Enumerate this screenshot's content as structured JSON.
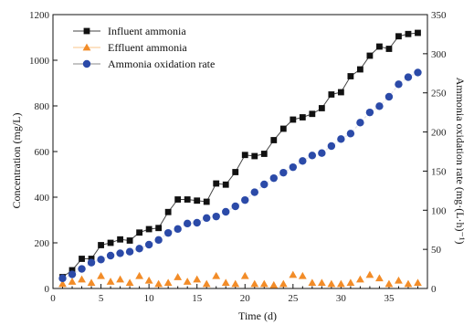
{
  "chart_data": {
    "type": "line",
    "title": "",
    "xlabel": "Time (d)",
    "ylabel_left": "Concentration (mg/L)",
    "ylabel_right": "Ammonia oxidation rate (mg·(L·h)⁻¹)",
    "xlim": [
      0,
      39
    ],
    "ylim_left": [
      0,
      1200
    ],
    "ylim_right": [
      0,
      350
    ],
    "x_ticks": [
      0,
      5,
      10,
      15,
      20,
      25,
      30,
      35
    ],
    "y_left_ticks": [
      0,
      200,
      400,
      600,
      800,
      1000,
      1200
    ],
    "y_right_ticks": [
      0,
      50,
      100,
      150,
      200,
      250,
      300,
      350
    ],
    "x_tick_labels": [
      "0",
      "5",
      "10",
      "15",
      "20",
      "25",
      "30",
      "35"
    ],
    "y_left_tick_labels": [
      "0",
      "200",
      "400",
      "600",
      "800",
      "1000",
      "1200"
    ],
    "y_right_tick_labels": [
      "0",
      "50",
      "100",
      "150",
      "200",
      "250",
      "300",
      "350"
    ],
    "grid": false,
    "legend_position": "top-left",
    "series": [
      {
        "name": "Influent ammonia",
        "axis": "left",
        "marker": "square",
        "color": "#111111",
        "x": [
          1,
          2,
          3,
          4,
          5,
          6,
          7,
          8,
          9,
          10,
          11,
          12,
          13,
          14,
          15,
          16,
          17,
          18,
          19,
          20,
          21,
          22,
          23,
          24,
          25,
          26,
          27,
          28,
          29,
          30,
          31,
          32,
          33,
          34,
          35,
          36,
          37,
          38
        ],
        "values": [
          50,
          80,
          130,
          130,
          190,
          200,
          215,
          210,
          245,
          260,
          265,
          335,
          390,
          390,
          385,
          380,
          460,
          455,
          510,
          585,
          580,
          590,
          650,
          700,
          740,
          750,
          765,
          790,
          850,
          860,
          930,
          960,
          1020,
          1060,
          1050,
          1105,
          1115,
          1120
        ]
      },
      {
        "name": "Effluent ammonia",
        "axis": "left",
        "marker": "triangle",
        "color": "#f28c28",
        "x": [
          1,
          2,
          3,
          4,
          5,
          6,
          7,
          8,
          9,
          10,
          11,
          12,
          13,
          14,
          15,
          16,
          17,
          18,
          19,
          20,
          21,
          22,
          23,
          24,
          25,
          26,
          27,
          28,
          29,
          30,
          31,
          32,
          33,
          34,
          35,
          36,
          37,
          38
        ],
        "values": [
          20,
          30,
          40,
          25,
          55,
          30,
          40,
          25,
          55,
          35,
          20,
          25,
          50,
          30,
          40,
          20,
          55,
          25,
          20,
          55,
          20,
          20,
          15,
          20,
          60,
          55,
          25,
          25,
          20,
          20,
          25,
          40,
          60,
          45,
          20,
          35,
          20,
          25
        ]
      },
      {
        "name": "Ammonia oxidation rate",
        "axis": "right",
        "marker": "circle",
        "color": "#2b4aa8",
        "x": [
          1,
          2,
          3,
          4,
          5,
          6,
          7,
          8,
          9,
          10,
          11,
          12,
          13,
          14,
          15,
          16,
          17,
          18,
          19,
          20,
          21,
          22,
          23,
          24,
          25,
          26,
          27,
          28,
          29,
          30,
          31,
          32,
          33,
          34,
          35,
          36,
          37,
          38
        ],
        "values": [
          13,
          18,
          25,
          33,
          37,
          42,
          45,
          47,
          51,
          56,
          62,
          71,
          76,
          83,
          84,
          90,
          92,
          98,
          105,
          113,
          123,
          133,
          141,
          148,
          155,
          163,
          170,
          173,
          182,
          191,
          198,
          212,
          225,
          233,
          245,
          261,
          270,
          276
        ]
      }
    ]
  }
}
